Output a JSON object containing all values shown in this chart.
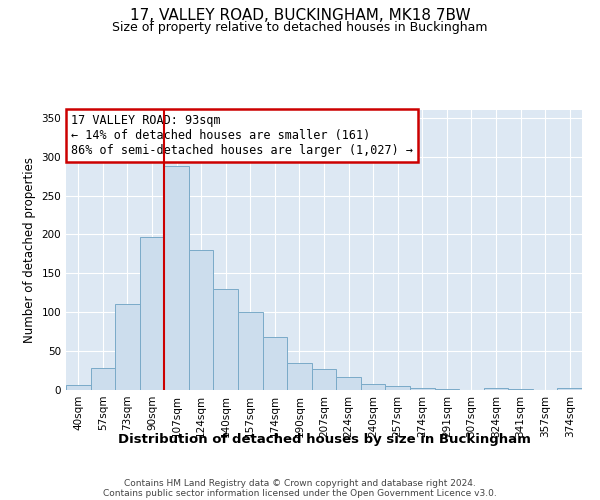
{
  "title": "17, VALLEY ROAD, BUCKINGHAM, MK18 7BW",
  "subtitle": "Size of property relative to detached houses in Buckingham",
  "xlabel": "Distribution of detached houses by size in Buckingham",
  "ylabel": "Number of detached properties",
  "bar_labels": [
    "40sqm",
    "57sqm",
    "73sqm",
    "90sqm",
    "107sqm",
    "124sqm",
    "140sqm",
    "157sqm",
    "174sqm",
    "190sqm",
    "207sqm",
    "224sqm",
    "240sqm",
    "257sqm",
    "274sqm",
    "291sqm",
    "307sqm",
    "324sqm",
    "341sqm",
    "357sqm",
    "374sqm"
  ],
  "bar_values": [
    7,
    28,
    110,
    197,
    288,
    180,
    130,
    100,
    68,
    35,
    27,
    17,
    8,
    5,
    2,
    1,
    0,
    3,
    1,
    0,
    2
  ],
  "bar_color": "#ccdded",
  "bar_edge_color": "#7aaac8",
  "vline_x_index": 3,
  "vline_color": "#cc0000",
  "ylim": [
    0,
    360
  ],
  "yticks": [
    0,
    50,
    100,
    150,
    200,
    250,
    300,
    350
  ],
  "annotation_title": "17 VALLEY ROAD: 93sqm",
  "annotation_line1": "← 14% of detached houses are smaller (161)",
  "annotation_line2": "86% of semi-detached houses are larger (1,027) →",
  "annotation_box_color": "#cc0000",
  "footer1": "Contains HM Land Registry data © Crown copyright and database right 2024.",
  "footer2": "Contains public sector information licensed under the Open Government Licence v3.0.",
  "bg_color": "#dde8f3",
  "grid_color": "#ffffff",
  "title_fontsize": 11,
  "subtitle_fontsize": 9,
  "xlabel_fontsize": 9.5,
  "ylabel_fontsize": 8.5,
  "tick_fontsize": 7.5,
  "annotation_fontsize": 8.5,
  "footer_fontsize": 6.5
}
